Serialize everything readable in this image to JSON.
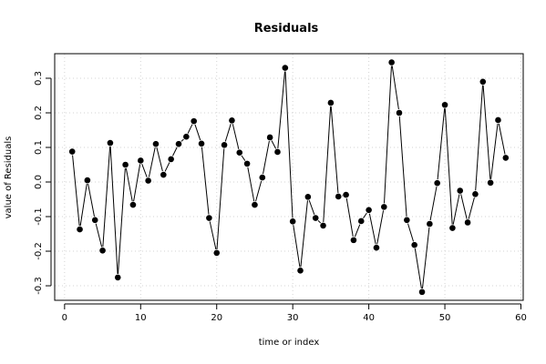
{
  "chart_data": {
    "type": "line",
    "title": "Residuals",
    "xlabel": "time or index",
    "ylabel": "value of Residuals",
    "xlim": [
      -1.3,
      60.3
    ],
    "ylim": [
      -0.342,
      0.371
    ],
    "x_ticks": [
      0,
      10,
      20,
      30,
      40,
      50,
      60
    ],
    "y_ticks": [
      -0.3,
      -0.2,
      -0.1,
      0.0,
      0.1,
      0.2,
      0.3
    ],
    "x_tick_labels": [
      "0",
      "10",
      "20",
      "30",
      "40",
      "50",
      "60"
    ],
    "y_tick_labels": [
      "-0.3",
      "-0.2",
      "-0.1",
      "0.0",
      "0.1",
      "0.2",
      "0.3"
    ],
    "grid": true,
    "markers": true,
    "x": [
      1,
      2,
      3,
      4,
      5,
      6,
      7,
      8,
      9,
      10,
      11,
      12,
      13,
      14,
      15,
      16,
      17,
      18,
      19,
      20,
      21,
      22,
      23,
      24,
      25,
      26,
      27,
      28,
      29,
      30,
      31,
      32,
      33,
      34,
      35,
      36,
      37,
      38,
      39,
      40,
      41,
      42,
      43,
      44,
      45,
      46,
      47,
      48,
      49,
      50,
      51,
      52,
      53,
      54,
      55,
      56,
      57,
      58
    ],
    "values": [
      0.088,
      -0.137,
      0.005,
      -0.11,
      -0.198,
      0.113,
      -0.276,
      0.05,
      -0.066,
      0.062,
      0.004,
      0.11,
      0.021,
      0.066,
      0.11,
      0.131,
      0.176,
      0.111,
      -0.104,
      -0.205,
      0.107,
      0.178,
      0.085,
      0.053,
      -0.066,
      0.013,
      0.129,
      0.087,
      0.33,
      -0.114,
      -0.256,
      -0.043,
      -0.104,
      -0.126,
      0.229,
      -0.042,
      -0.037,
      -0.168,
      -0.113,
      -0.081,
      -0.19,
      -0.072,
      0.346,
      0.2,
      -0.11,
      -0.182,
      -0.318,
      -0.121,
      -0.003,
      0.223,
      -0.133,
      -0.025,
      -0.117,
      -0.035,
      0.29,
      -0.002,
      0.179,
      0.07
    ]
  }
}
